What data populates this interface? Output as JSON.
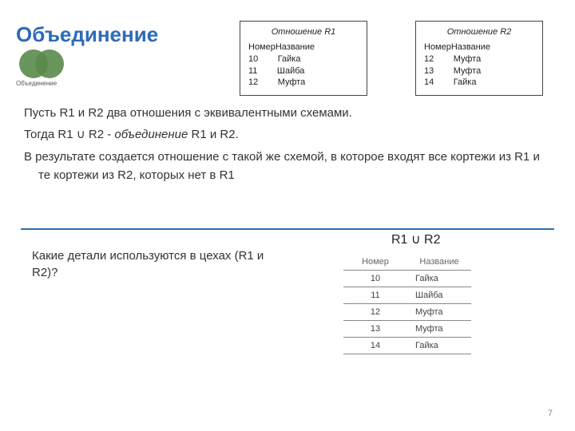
{
  "title": "Объединение",
  "venn_label": "Объединение",
  "r1": {
    "title": "Отношение R1",
    "col1": "Номер",
    "col2": "Название",
    "rows": [
      {
        "n": "10",
        "name": "Гайка"
      },
      {
        "n": "11",
        "name": "Шайба"
      },
      {
        "n": "12",
        "name": "Муфта"
      }
    ]
  },
  "r2": {
    "title": "Отношение R2",
    "col1": "Номер",
    "col2": "Название",
    "rows": [
      {
        "n": "12",
        "name": "Муфта"
      },
      {
        "n": "13",
        "name": "Муфта"
      },
      {
        "n": "14",
        "name": "Гайка"
      }
    ]
  },
  "para1": "Пусть R1 и R2 два отношения с эквивалентными схемами.",
  "para2_a": "Тогда R1 ∪ R2 - ",
  "para2_b": "объединение",
  "para2_c": " R1 и R2.",
  "para3": "В результате создается отношение с такой же схемой, в которое входят все кортежи из R1 и те кортежи из R2, которых нет в R1",
  "question": "Какие детали используются в цехах (R1 и R2)?",
  "result_title": "R1 ∪ R2",
  "result_table": {
    "col1": "Номер",
    "col2": "Название",
    "rows": [
      {
        "n": "10",
        "name": "Гайка"
      },
      {
        "n": "11",
        "name": "Шайба"
      },
      {
        "n": "12",
        "name": "Муфта"
      },
      {
        "n": "13",
        "name": "Муфта"
      },
      {
        "n": "14",
        "name": "Гайка"
      }
    ]
  },
  "page_number": "7"
}
